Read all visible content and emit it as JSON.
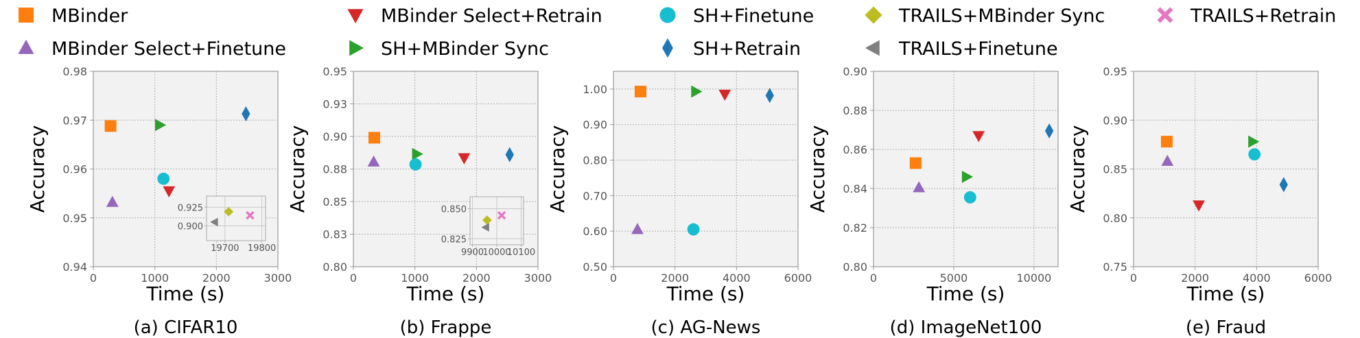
{
  "legend": {
    "placement": "top",
    "entries": [
      {
        "name": "MBinder",
        "marker": "square",
        "color": "#ff7f0e"
      },
      {
        "name": "MBinder Select+Retrain",
        "marker": "triangle-down",
        "color": "#d62728"
      },
      {
        "name": "SH+Finetune",
        "marker": "circle",
        "color": "#17becf"
      },
      {
        "name": "TRAILS+MBinder Sync",
        "marker": "diamond-fat",
        "color": "#bcbd22"
      },
      {
        "name": "TRAILS+Retrain",
        "marker": "x",
        "color": "#e377c2"
      },
      {
        "name": "MBinder Select+Finetune",
        "marker": "triangle-up",
        "color": "#9467bd"
      },
      {
        "name": "SH+MBinder Sync",
        "marker": "triangle-right",
        "color": "#2ca02c"
      },
      {
        "name": "SH+Retrain",
        "marker": "diamond",
        "color": "#1f77b4"
      },
      {
        "name": "TRAILS+Finetune",
        "marker": "triangle-left",
        "color": "#7f7f7f"
      }
    ]
  },
  "chart_data": [
    {
      "type": "scatter",
      "caption": "(a) CIFAR10",
      "xlabel": "Time (s)",
      "ylabel": "Accuracy",
      "xlim": [
        0,
        3000
      ],
      "ylim": [
        0.94,
        0.98
      ],
      "xticks": [
        0,
        1000,
        2000,
        3000
      ],
      "xtick_labels": [
        "0",
        "1000",
        "2000",
        "3000"
      ],
      "yticks": [
        0.94,
        0.95,
        0.96,
        0.97,
        0.98
      ],
      "ytick_labels": [
        "0.94",
        "0.95",
        "0.96",
        "0.97",
        "0.98"
      ],
      "grid": true,
      "points": [
        {
          "series": "MBinder",
          "x": 280,
          "y": 0.9688
        },
        {
          "series": "SH+MBinder Sync",
          "x": 1080,
          "y": 0.969
        },
        {
          "series": "SH+Retrain",
          "x": 2480,
          "y": 0.9713
        },
        {
          "series": "SH+Finetune",
          "x": 1140,
          "y": 0.958
        },
        {
          "series": "MBinder Select+Retrain",
          "x": 1230,
          "y": 0.9555
        },
        {
          "series": "MBinder Select+Finetune",
          "x": 310,
          "y": 0.9532
        }
      ],
      "inset": {
        "xlim": [
          19650,
          19810
        ],
        "ylim": [
          0.88,
          0.94
        ],
        "xticks": [
          19700,
          19800
        ],
        "xtick_labels": [
          "19700",
          "19800"
        ],
        "yticks": [
          0.9,
          0.925
        ],
        "ytick_labels": [
          "0.900",
          "0.925"
        ],
        "points": [
          {
            "series": "TRAILS+MBinder Sync",
            "x": 19710,
            "y": 0.919
          },
          {
            "series": "TRAILS+Retrain",
            "x": 19768,
            "y": 0.914
          },
          {
            "series": "TRAILS+Finetune",
            "x": 19672,
            "y": 0.905
          }
        ]
      }
    },
    {
      "type": "scatter",
      "caption": "(b) Frappe",
      "xlabel": "Time (s)",
      "ylabel": "Accuracy",
      "xlim": [
        0,
        3000
      ],
      "ylim": [
        0.8,
        0.95
      ],
      "xticks": [
        0,
        1000,
        2000,
        3000
      ],
      "xtick_labels": [
        "0",
        "1000",
        "2000",
        "3000"
      ],
      "yticks": [
        0.8,
        0.825,
        0.85,
        0.875,
        0.9,
        0.925,
        0.95
      ],
      "ytick_labels": [
        "0.80",
        "0.83",
        "0.85",
        "0.88",
        "0.90",
        "0.93",
        "0.95"
      ],
      "grid": true,
      "points": [
        {
          "series": "MBinder",
          "x": 340,
          "y": 0.899
        },
        {
          "series": "SH+MBinder Sync",
          "x": 1030,
          "y": 0.8865
        },
        {
          "series": "MBinder Select+Retrain",
          "x": 1800,
          "y": 0.8835
        },
        {
          "series": "SH+Retrain",
          "x": 2540,
          "y": 0.886
        },
        {
          "series": "MBinder Select+Finetune",
          "x": 330,
          "y": 0.8805
        },
        {
          "series": "SH+Finetune",
          "x": 1010,
          "y": 0.8785
        }
      ],
      "inset": {
        "xlim": [
          9890,
          10110
        ],
        "ylim": [
          0.82,
          0.86
        ],
        "xticks": [
          9900,
          10000,
          10100
        ],
        "xtick_labels": [
          "9900",
          "10000",
          "10100"
        ],
        "yticks": [
          0.825,
          0.85
        ],
        "ytick_labels": [
          "0.825",
          "0.850"
        ],
        "points": [
          {
            "series": "TRAILS+Retrain",
            "x": 10020,
            "y": 0.8445
          },
          {
            "series": "TRAILS+MBinder Sync",
            "x": 9960,
            "y": 0.8405
          },
          {
            "series": "TRAILS+Finetune",
            "x": 9955,
            "y": 0.8345
          }
        ]
      }
    },
    {
      "type": "scatter",
      "caption": "(c) AG-News",
      "xlabel": "Time (s)",
      "ylabel": "Accuracy",
      "xlim": [
        0,
        6000
      ],
      "ylim": [
        0.5,
        1.05
      ],
      "xticks": [
        0,
        2000,
        4000,
        6000
      ],
      "xtick_labels": [
        "0",
        "2000",
        "4000",
        "6000"
      ],
      "yticks": [
        0.5,
        0.6,
        0.7,
        0.8,
        0.9,
        1.0
      ],
      "ytick_labels": [
        "0.50",
        "0.60",
        "0.70",
        "0.80",
        "0.90",
        "1.00"
      ],
      "grid": true,
      "points": [
        {
          "series": "MBinder",
          "x": 880,
          "y": 0.993
        },
        {
          "series": "SH+MBinder Sync",
          "x": 2680,
          "y": 0.993
        },
        {
          "series": "MBinder Select+Retrain",
          "x": 3620,
          "y": 0.985
        },
        {
          "series": "SH+Retrain",
          "x": 5080,
          "y": 0.982
        },
        {
          "series": "MBinder Select+Finetune",
          "x": 780,
          "y": 0.605
        },
        {
          "series": "SH+Finetune",
          "x": 2600,
          "y": 0.605
        }
      ]
    },
    {
      "type": "scatter",
      "caption": "(d) ImageNet100",
      "xlabel": "Time (s)",
      "ylabel": "Accuracy",
      "xlim": [
        0,
        11500
      ],
      "ylim": [
        0.8,
        0.9
      ],
      "xticks": [
        0,
        5000,
        10000
      ],
      "xtick_labels": [
        "0",
        "5000",
        "10000"
      ],
      "yticks": [
        0.8,
        0.82,
        0.84,
        0.86,
        0.88,
        0.9
      ],
      "ytick_labels": [
        "0.80",
        "0.82",
        "0.84",
        "0.86",
        "0.88",
        "0.90"
      ],
      "grid": true,
      "points": [
        {
          "series": "MBinder",
          "x": 2620,
          "y": 0.853
        },
        {
          "series": "MBinder Select+Retrain",
          "x": 6550,
          "y": 0.867
        },
        {
          "series": "SH+Retrain",
          "x": 10950,
          "y": 0.8695
        },
        {
          "series": "SH+MBinder Sync",
          "x": 5800,
          "y": 0.846
        },
        {
          "series": "MBinder Select+Finetune",
          "x": 2830,
          "y": 0.8405
        },
        {
          "series": "SH+Finetune",
          "x": 6020,
          "y": 0.8355
        }
      ]
    },
    {
      "type": "scatter",
      "caption": "(e) Fraud",
      "xlabel": "Time (s)",
      "ylabel": "Accuracy",
      "xlim": [
        0,
        6000
      ],
      "ylim": [
        0.75,
        0.95
      ],
      "xticks": [
        0,
        2000,
        4000,
        6000
      ],
      "xtick_labels": [
        "0",
        "2000",
        "4000",
        "6000"
      ],
      "yticks": [
        0.75,
        0.8,
        0.85,
        0.9,
        0.95
      ],
      "ytick_labels": [
        "0.75",
        "0.80",
        "0.85",
        "0.90",
        "0.95"
      ],
      "grid": true,
      "points": [
        {
          "series": "MBinder",
          "x": 1080,
          "y": 0.878
        },
        {
          "series": "SH+MBinder Sync",
          "x": 3880,
          "y": 0.878
        },
        {
          "series": "SH+Finetune",
          "x": 3930,
          "y": 0.865
        },
        {
          "series": "MBinder Select+Finetune",
          "x": 1100,
          "y": 0.858
        },
        {
          "series": "SH+Retrain",
          "x": 4880,
          "y": 0.834
        },
        {
          "series": "MBinder Select+Retrain",
          "x": 2120,
          "y": 0.813
        }
      ]
    }
  ]
}
